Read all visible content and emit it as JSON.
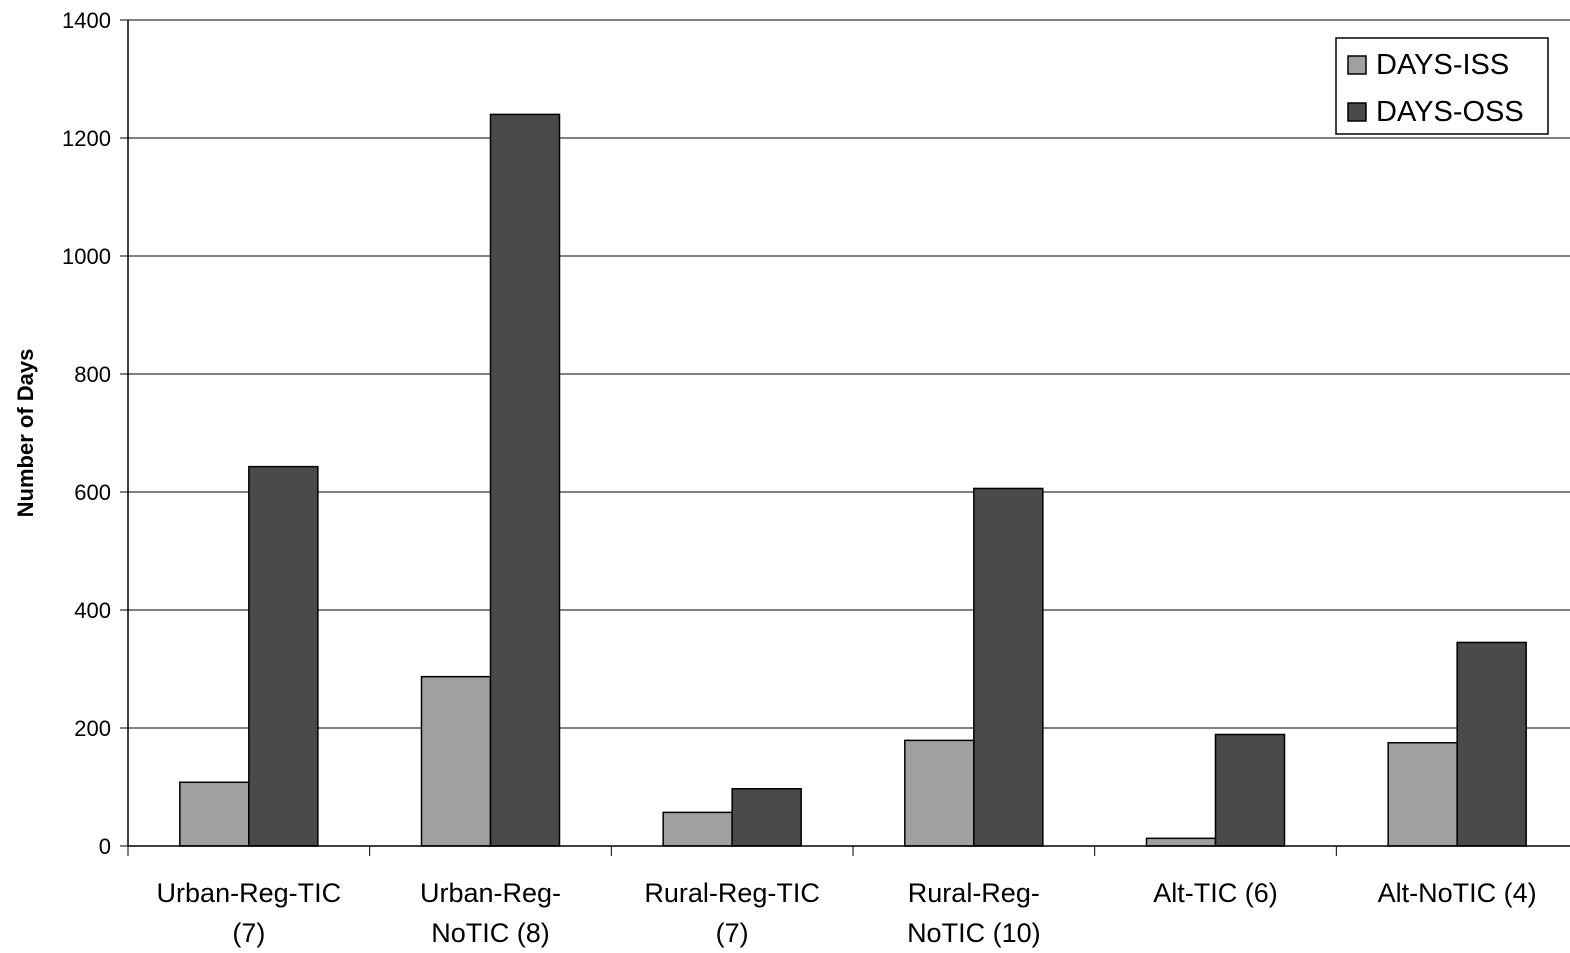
{
  "chart_data": {
    "type": "bar",
    "title": "",
    "xlabel": "",
    "ylabel": "Number of Days",
    "ylim": [
      0,
      1400
    ],
    "yticks": [
      0,
      200,
      400,
      600,
      800,
      1000,
      1200,
      1400
    ],
    "categories": [
      [
        "Urban-Reg-TIC",
        "(7)"
      ],
      [
        "Urban-Reg-",
        "NoTIC (8)"
      ],
      [
        "Rural-Reg-TIC",
        "(7)"
      ],
      [
        "Rural-Reg-",
        "NoTIC (10)"
      ],
      [
        "Alt-TIC (6)"
      ],
      [
        "Alt-NoTIC (4)"
      ]
    ],
    "series": [
      {
        "name": "DAYS-ISS",
        "color": "#a0a0a0",
        "values": [
          108,
          287,
          57,
          179,
          13,
          175
        ]
      },
      {
        "name": "DAYS-OSS",
        "color": "#4a4a4a",
        "values": [
          643,
          1240,
          97,
          606,
          189,
          345
        ]
      }
    ],
    "grid": true,
    "legend": "top-right"
  }
}
